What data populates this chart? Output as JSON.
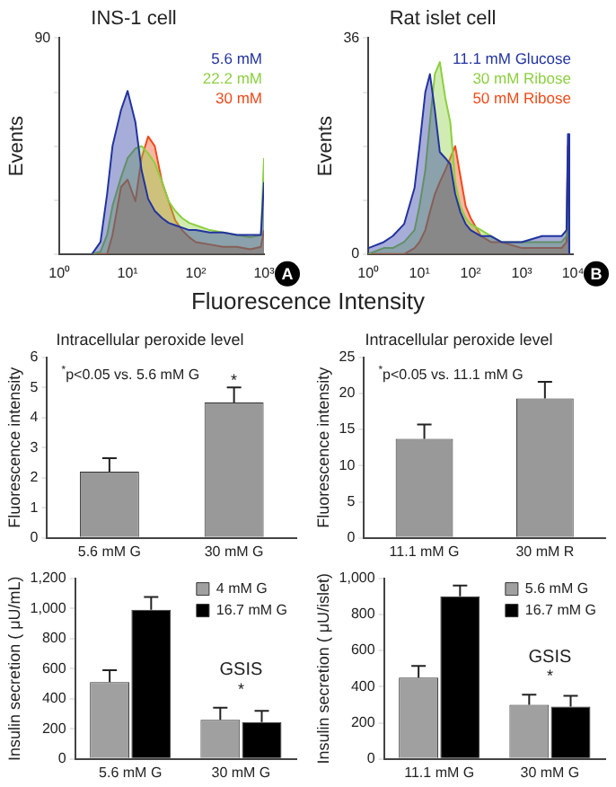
{
  "chart_data": [
    {
      "type": "area",
      "title": "INS-1 cell",
      "xlabel": "Fluorescence Intensity",
      "ylabel": "Events",
      "log": "x",
      "legend": "top right",
      "annotations": [
        "A"
      ],
      "xlim": [
        1,
        1000
      ],
      "xticks": [
        {
          "value": 1,
          "label": "10⁰"
        },
        {
          "value": 10,
          "label": "10¹"
        },
        {
          "value": 100,
          "label": "10²"
        },
        {
          "value": 1000,
          "label": "10³"
        }
      ],
      "ylim": [
        0,
        90
      ],
      "yticks": [
        {
          "value": 0,
          "label": null
        },
        {
          "value": 22.5,
          "label": null
        },
        {
          "value": 45,
          "label": null
        },
        {
          "value": 67.5,
          "label": null
        },
        90
      ],
      "x": [
        3,
        4,
        5,
        6,
        8,
        10,
        13,
        16,
        20,
        25,
        32,
        40,
        50,
        63,
        80,
        100,
        160,
        250,
        400,
        630,
        900,
        1000
      ],
      "series": [
        {
          "name": "5.6 mM",
          "color": "#2233a0",
          "values": [
            0,
            5,
            25,
            45,
            60,
            68,
            55,
            35,
            23,
            18,
            15,
            13,
            12,
            11,
            10,
            10,
            9,
            9,
            8,
            8,
            8,
            30
          ]
        },
        {
          "name": "22.2 mM",
          "color": "#8ccf3f",
          "values": [
            0,
            1,
            8,
            20,
            32,
            40,
            44,
            45,
            42,
            38,
            30,
            22,
            18,
            15,
            13,
            12,
            10,
            9,
            8,
            7,
            8,
            40
          ]
        },
        {
          "name": "30 mM",
          "color": "#f04a1a",
          "values": [
            0,
            0,
            0,
            8,
            28,
            31,
            22,
            40,
            49,
            45,
            30,
            22,
            14,
            10,
            7,
            5,
            4,
            3,
            3,
            2,
            3,
            10
          ]
        }
      ]
    },
    {
      "type": "area",
      "title": "Rat islet cell",
      "ylabel": "Events",
      "log": "x",
      "legend": "top right",
      "annotations": [
        "B"
      ],
      "xlim": [
        1,
        10000
      ],
      "xticks": [
        {
          "value": 1,
          "label": "10⁰"
        },
        {
          "value": 10,
          "label": "10¹"
        },
        {
          "value": 100,
          "label": "10²"
        },
        {
          "value": 1000,
          "label": "10³"
        },
        {
          "value": 10000,
          "label": "10⁴"
        }
      ],
      "ylim": [
        0,
        36
      ],
      "yticks": [
        0,
        {
          "value": 9,
          "label": null
        },
        {
          "value": 18,
          "label": null
        },
        {
          "value": 27,
          "label": null
        },
        36
      ],
      "x": [
        1,
        2,
        3,
        5,
        8,
        10,
        13,
        16,
        20,
        25,
        32,
        40,
        50,
        63,
        80,
        100,
        160,
        250,
        400,
        1000,
        2500,
        6000,
        7500,
        8000,
        8500
      ],
      "series": [
        {
          "name": "11.1 mM Glucose",
          "color": "#2233a0",
          "values": [
            1,
            2,
            3,
            5,
            11,
            18,
            27,
            30,
            24,
            17,
            16,
            15,
            10,
            7,
            5,
            4,
            3,
            3,
            2,
            2,
            3,
            3,
            4,
            20,
            0
          ]
        },
        {
          "name": "30 mM Ribose",
          "color": "#8ccf3f",
          "values": [
            0,
            1,
            1,
            2,
            4,
            8,
            14,
            22,
            30,
            32,
            26,
            22,
            12,
            8,
            6,
            5,
            4,
            3,
            2,
            2,
            2,
            2,
            3,
            15,
            0
          ]
        },
        {
          "name": "50 mM Ribose",
          "color": "#f04a1a",
          "values": [
            0,
            0,
            0,
            0,
            1,
            2,
            4,
            7,
            10,
            12,
            14,
            16,
            18,
            13,
            8,
            6,
            3,
            2,
            2,
            1,
            1,
            1,
            2,
            18,
            0
          ]
        }
      ]
    },
    {
      "type": "bar",
      "title": "Intracellular peroxide level",
      "ylabel": "Fluorescence intensity",
      "categories": [
        "5.6 mM G",
        "30 mM G"
      ],
      "values": [
        2.2,
        4.5
      ],
      "errors": [
        0.45,
        0.5
      ],
      "color": "#999999",
      "ylim": [
        0,
        6
      ],
      "yticks": [
        0,
        1,
        2,
        3,
        4,
        5,
        6
      ],
      "annotations": [
        "$^{*}$p<0.05 vs. 5.6 mM G",
        {
          "text": "*",
          "x": "30 mM G",
          "y": 5.2
        }
      ]
    },
    {
      "type": "bar",
      "title": "Intracellular peroxide level",
      "ylabel": "Fluorescence intensity",
      "categories": [
        "11.1 mM G",
        "30 mM R"
      ],
      "values": [
        13.7,
        19.3
      ],
      "errors": [
        2,
        2.3
      ],
      "color": "#999999",
      "ylim": [
        0,
        25
      ],
      "yticks": [
        0,
        5,
        10,
        15,
        20,
        25
      ],
      "annotations": [
        "$^{*}$p<0.05 vs. 11.1 mM G"
      ]
    },
    {
      "type": "bar",
      "ylabel": "Insulin secretion ( μU/mL)",
      "categories": [
        "5.6 mM G",
        "30 mM G"
      ],
      "legend": "top right",
      "series": [
        {
          "name": "4 mM G",
          "color": "#a0a0a0",
          "values": [
            510,
            260
          ],
          "errors": [
            80,
            80
          ]
        },
        {
          "name": "16.7 mM G",
          "color": "#000000",
          "values": [
            990,
            245
          ],
          "errors": [
            85,
            75
          ]
        }
      ],
      "ylim": [
        0,
        1200
      ],
      "yticks": [
        0,
        200,
        400,
        600,
        800,
        {
          "value": 1000,
          "label": "1,000"
        },
        {
          "value": 1200,
          "label": "1,200"
        }
      ],
      "annotations": [
        "GSIS",
        "*"
      ]
    },
    {
      "type": "bar",
      "ylabel": "Insulin secretion ( μU/islet)",
      "categories": [
        "11.1 mM G",
        "30 mM G"
      ],
      "legend": "top right",
      "series": [
        {
          "name": "5.6 mM G",
          "color": "#a0a0a0",
          "values": [
            450,
            300
          ],
          "errors": [
            65,
            55
          ]
        },
        {
          "name": "16.7 mM G",
          "color": "#000000",
          "values": [
            900,
            290
          ],
          "errors": [
            60,
            60
          ]
        }
      ],
      "ylim": [
        0,
        1000
      ],
      "yticks": [
        0,
        200,
        400,
        600,
        800,
        {
          "value": 1000,
          "label": "1,000"
        }
      ],
      "annotations": [
        "GSIS",
        "*"
      ]
    }
  ]
}
